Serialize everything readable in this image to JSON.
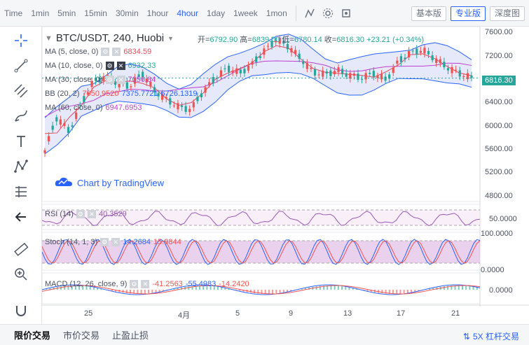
{
  "toolbar": {
    "timeframes": [
      "Time",
      "1min",
      "5min",
      "15min",
      "30min",
      "1hour",
      "4hour",
      "1day",
      "1week",
      "1mon"
    ],
    "active_timeframe": "4hour",
    "view_buttons": [
      "基本版",
      "专业版",
      "深度图"
    ],
    "active_view": "专业版"
  },
  "symbol": {
    "title": "BTC/USDT, 240, Huobi",
    "ohlc": {
      "open_label": "开=",
      "open": "6792.90",
      "high_label": "高=",
      "high": "6839.00",
      "low_label": "低=",
      "low": "6780.14",
      "close_label": "收=",
      "close": "6816.30",
      "change": "+23.21 (+0.34%)"
    }
  },
  "indicators": {
    "ma5": {
      "label": "MA (5, close, 0)",
      "value": "6834.59"
    },
    "ma10": {
      "label": "MA (10, close, 0)",
      "value": "6932.33"
    },
    "ma30": {
      "label": "MA (30, close, 0)",
      "value": "7056.84"
    },
    "bb": {
      "label": "BB (20, 2)",
      "v1": "7050.9520",
      "v2": "7375.7721",
      "v3": "6726.1319"
    },
    "ma60": {
      "label": "MA (60, close, 0)",
      "value": "6947.6953"
    },
    "rsi": {
      "label": "RSI (14)",
      "value": "40.3529"
    },
    "stoch": {
      "label": "Stoch (14, 1, 3)",
      "v1": "14.2684",
      "v2": "15.9844"
    },
    "macd": {
      "label": "MACD (12, 26, close, 9)",
      "v1": "-41.2563",
      "v2": "-55.4983",
      "v3": "-14.2420"
    }
  },
  "watermark": "Chart by TradingView",
  "price_axis": [
    "7600.00",
    "7200.00",
    "6800.00",
    "6400.00",
    "6000.00",
    "5600.00",
    "5200.00",
    "4800.00"
  ],
  "current_price": "6816.30",
  "rsi_axis": [
    "50.0000"
  ],
  "stoch_axis": [
    "100.0000",
    "0.0000"
  ],
  "macd_axis": [
    "0.0000"
  ],
  "time_axis": [
    "25",
    "4月",
    "5",
    "9",
    "13",
    "17",
    "21"
  ],
  "bottom_tabs": [
    "限价交易",
    "市价交易",
    "止盈止损"
  ],
  "active_tab": "限价交易",
  "lever_label": "5X 杠杆交易",
  "colors": {
    "up": "#26a69a",
    "down": "#ef5350",
    "accent": "#2962ff",
    "bb_fill": "#dfe3f7",
    "ma_red": "#e64a5f",
    "ma_purple": "#c03fd1",
    "rsi": "#9b59b6",
    "stoch_fill": "#e1bee7"
  },
  "chart_data": {
    "type": "line",
    "close_series": [
      5580,
      6150,
      5900,
      6380,
      6760,
      6840,
      6720,
      6680,
      6900,
      6600,
      6450,
      6320,
      6280,
      6590,
      6820,
      6990,
      6900,
      7050,
      7280,
      7480,
      7360,
      7150,
      6920,
      6880,
      6950,
      6870,
      6820,
      6900,
      6780,
      7100,
      7250,
      7300,
      7150,
      7000,
      6900,
      6816
    ],
    "ylim": [
      4700,
      7700
    ]
  }
}
